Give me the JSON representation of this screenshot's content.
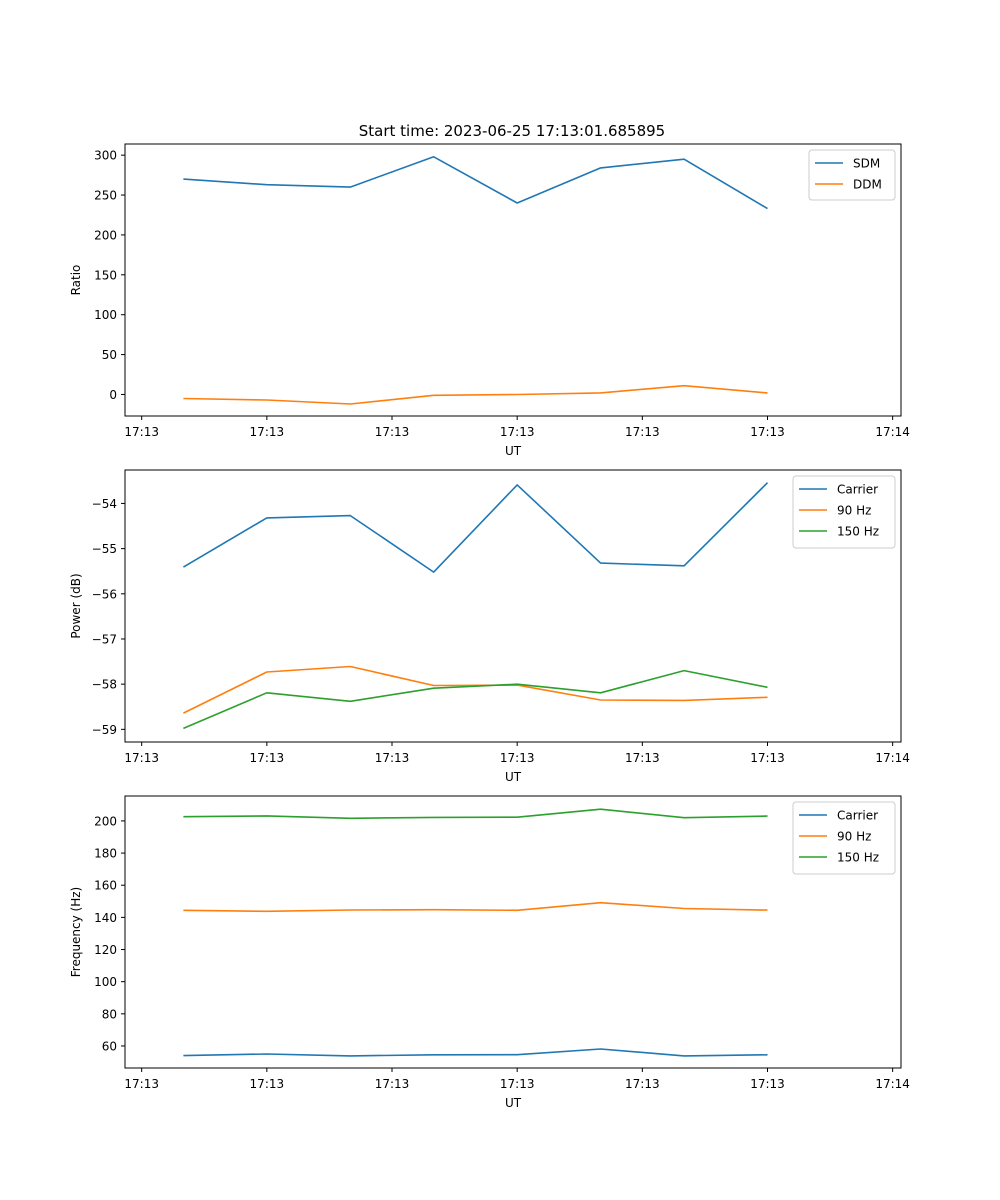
{
  "figure": {
    "title": "Start time: 2023-06-25 17:13:01.685895"
  },
  "chart_data": [
    {
      "type": "line",
      "title": "Start time: 2023-06-25 17:13:01.685895",
      "xlabel": "UT",
      "ylabel": "Ratio",
      "x": [
        1,
        2,
        3,
        4,
        5,
        6,
        7,
        8
      ],
      "xlim": [
        0.3,
        9.6
      ],
      "x_ticks": [
        0.5,
        2,
        3.5,
        5,
        6.5,
        8,
        9.5
      ],
      "x_tick_labels": [
        "17:13",
        "17:13",
        "17:13",
        "17:13",
        "17:13",
        "17:13",
        "17:14"
      ],
      "ylim": [
        -27,
        314
      ],
      "y_ticks": [
        0,
        50,
        100,
        150,
        200,
        250,
        300
      ],
      "y_tick_labels": [
        "0",
        "50",
        "100",
        "150",
        "200",
        "250",
        "300"
      ],
      "legend": "top-right",
      "grid": false,
      "series": [
        {
          "name": "SDM",
          "color": "#1f77b4",
          "values": [
            270,
            263,
            260,
            298,
            240,
            284,
            295,
            233
          ]
        },
        {
          "name": "DDM",
          "color": "#ff7f0e",
          "values": [
            -5,
            -7,
            -12,
            -1,
            0,
            2,
            11,
            2
          ]
        }
      ]
    },
    {
      "type": "line",
      "xlabel": "UT",
      "ylabel": "Power (dB)",
      "x": [
        1,
        2,
        3,
        4,
        5,
        6,
        7,
        8
      ],
      "xlim": [
        0.3,
        9.6
      ],
      "x_ticks": [
        0.5,
        2,
        3.5,
        5,
        6.5,
        8,
        9.5
      ],
      "x_tick_labels": [
        "17:13",
        "17:13",
        "17:13",
        "17:13",
        "17:13",
        "17:13",
        "17:14"
      ],
      "ylim": [
        -59.28,
        -53.26
      ],
      "y_ticks": [
        -59,
        -58,
        -57,
        -56,
        -55,
        -54
      ],
      "y_tick_labels": [
        "−59",
        "−58",
        "−57",
        "−56",
        "−55",
        "−54"
      ],
      "legend": "top-right",
      "grid": false,
      "series": [
        {
          "name": "Carrier",
          "color": "#1f77b4",
          "values": [
            -55.41,
            -54.32,
            -54.27,
            -55.52,
            -53.59,
            -55.32,
            -55.38,
            -53.54
          ]
        },
        {
          "name": "90 Hz",
          "color": "#ff7f0e",
          "values": [
            -58.64,
            -57.73,
            -57.61,
            -58.03,
            -58.02,
            -58.35,
            -58.36,
            -58.29
          ]
        },
        {
          "name": "150 Hz",
          "color": "#2ca02c",
          "values": [
            -58.98,
            -58.19,
            -58.38,
            -58.09,
            -58.0,
            -58.19,
            -57.7,
            -58.07
          ]
        }
      ]
    },
    {
      "type": "line",
      "xlabel": "UT",
      "ylabel": "Frequency (Hz)",
      "x": [
        1,
        2,
        3,
        4,
        5,
        6,
        7,
        8
      ],
      "xlim": [
        0.3,
        9.6
      ],
      "x_ticks": [
        0.5,
        2,
        3.5,
        5,
        6.5,
        8,
        9.5
      ],
      "x_tick_labels": [
        "17:13",
        "17:13",
        "17:13",
        "17:13",
        "17:13",
        "17:13",
        "17:14"
      ],
      "ylim": [
        46.3,
        215.5
      ],
      "y_ticks": [
        60,
        80,
        100,
        120,
        140,
        160,
        180,
        200
      ],
      "y_tick_labels": [
        "60",
        "80",
        "100",
        "120",
        "140",
        "160",
        "180",
        "200"
      ],
      "legend": "top-right",
      "grid": false,
      "series": [
        {
          "name": "Carrier",
          "color": "#1f77b4",
          "values": [
            54,
            55,
            53.8,
            54.5,
            54.6,
            58.1,
            53.8,
            54.5
          ]
        },
        {
          "name": "90 Hz",
          "color": "#ff7f0e",
          "values": [
            144.4,
            143.8,
            144.6,
            144.8,
            144.4,
            149.1,
            145.5,
            144.5
          ]
        },
        {
          "name": "150 Hz",
          "color": "#2ca02c",
          "values": [
            202.6,
            203.1,
            201.6,
            202.2,
            202.3,
            207.3,
            202.0,
            203.0
          ]
        }
      ]
    }
  ]
}
